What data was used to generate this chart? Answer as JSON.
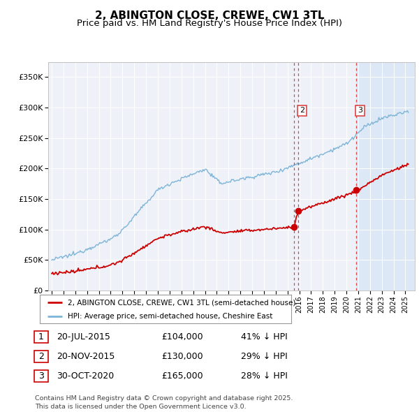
{
  "title": "2, ABINGTON CLOSE, CREWE, CW1 3TL",
  "subtitle": "Price paid vs. HM Land Registry's House Price Index (HPI)",
  "background_color": "#ffffff",
  "plot_bg_color": "#eef2f8",
  "ylabel_values": [
    "£0",
    "£50K",
    "£100K",
    "£150K",
    "£200K",
    "£250K",
    "£300K",
    "£350K"
  ],
  "ylim": [
    0,
    375000
  ],
  "sale_dates": [
    2015.54,
    2015.9,
    2020.83
  ],
  "sale_prices": [
    104000,
    130000,
    165000
  ],
  "sale_labels": [
    "1",
    "2",
    "3"
  ],
  "hpi_color": "#7db4d8",
  "sale_color": "#cc0000",
  "dashed_line_color": "#dd4444",
  "shade_color": "#dce8f5",
  "legend_entries": [
    "2, ABINGTON CLOSE, CREWE, CW1 3TL (semi-detached house)",
    "HPI: Average price, semi-detached house, Cheshire East"
  ],
  "table_data": [
    {
      "label": "1",
      "date": "20-JUL-2015",
      "price": "£104,000",
      "hpi": "41% ↓ HPI"
    },
    {
      "label": "2",
      "date": "20-NOV-2015",
      "price": "£130,000",
      "hpi": "29% ↓ HPI"
    },
    {
      "label": "3",
      "date": "30-OCT-2020",
      "price": "£165,000",
      "hpi": "28% ↓ HPI"
    }
  ],
  "footer": "Contains HM Land Registry data © Crown copyright and database right 2025.\nThis data is licensed under the Open Government Licence v3.0.",
  "title_fontsize": 11,
  "subtitle_fontsize": 9.5
}
